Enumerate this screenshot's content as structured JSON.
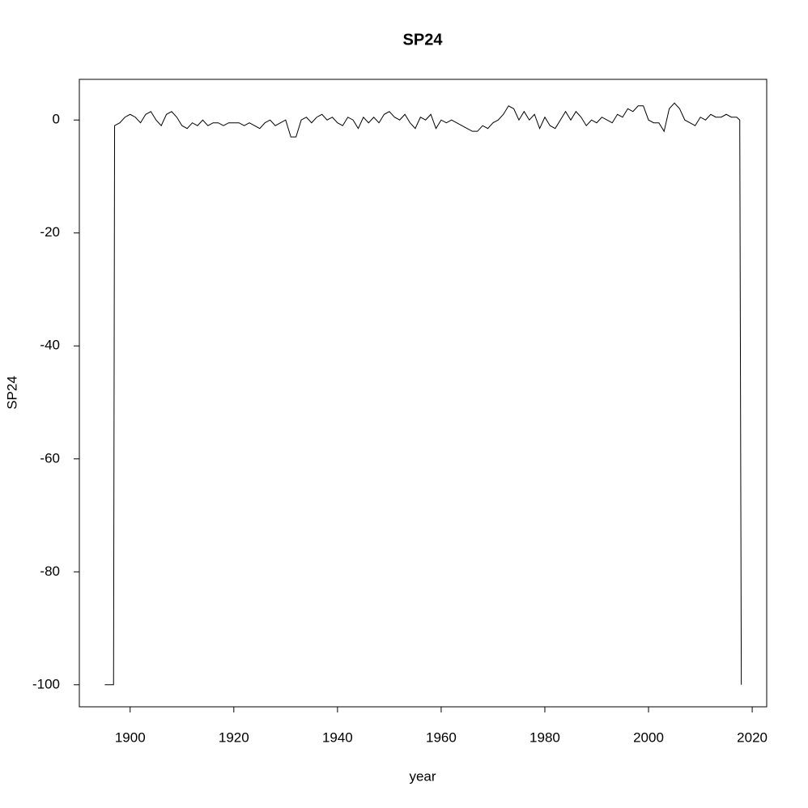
{
  "chart_data": {
    "type": "line",
    "title": "SP24",
    "x_label": "year",
    "y_label": "SP24",
    "color": "#000000",
    "x": [
      1895.1,
      1896.8,
      1896.9,
      1897,
      1898,
      1899,
      1900,
      1901,
      1902,
      1903,
      1904,
      1905,
      1906,
      1907,
      1908,
      1909,
      1910,
      1911,
      1912,
      1913,
      1914,
      1915,
      1916,
      1917,
      1918,
      1919,
      1920,
      1921,
      1922,
      1923,
      1924,
      1925,
      1926,
      1927,
      1928,
      1929,
      1930,
      1931,
      1932,
      1933,
      1934,
      1935,
      1936,
      1937,
      1938,
      1939,
      1940,
      1941,
      1942,
      1943,
      1944,
      1945,
      1946,
      1947,
      1948,
      1949,
      1950,
      1951,
      1952,
      1953,
      1954,
      1955,
      1956,
      1957,
      1958,
      1959,
      1960,
      1961,
      1962,
      1963,
      1964,
      1965,
      1966,
      1967,
      1968,
      1969,
      1970,
      1971,
      1972,
      1973,
      1974,
      1975,
      1976,
      1977,
      1978,
      1979,
      1980,
      1981,
      1982,
      1983,
      1984,
      1985,
      1986,
      1987,
      1988,
      1989,
      1990,
      1991,
      1992,
      1993,
      1994,
      1995,
      1996,
      1997,
      1998,
      1999,
      2000,
      2001,
      2002,
      2003,
      2004,
      2005,
      2006,
      2007,
      2008,
      2009,
      2010,
      2011,
      2012,
      2013,
      2014,
      2015,
      2016,
      2017,
      2017.6,
      2017.9
    ],
    "values": [
      -100,
      -100,
      -50,
      -1,
      -0.5,
      0.5,
      1,
      0.5,
      -0.5,
      1,
      1.5,
      0,
      -1,
      1,
      1.5,
      0.5,
      -1,
      -1.5,
      -0.5,
      -1,
      0,
      -1,
      -0.5,
      -0.5,
      -1,
      -0.5,
      -0.5,
      -0.5,
      -1,
      -0.5,
      -1,
      -1.5,
      -0.5,
      0,
      -1,
      -0.5,
      0,
      -3,
      -3,
      0,
      0.5,
      -0.5,
      0.5,
      1,
      0,
      0.5,
      -0.5,
      -1,
      0.5,
      0,
      -1.5,
      0.5,
      -0.5,
      0.5,
      -0.5,
      1,
      1.5,
      0.5,
      0,
      1,
      -0.5,
      -1.5,
      0.5,
      0,
      1,
      -1.5,
      0,
      -0.5,
      0,
      -0.5,
      -1,
      -1.5,
      -2,
      -2,
      -1,
      -1.5,
      -0.5,
      0,
      1,
      2.5,
      2,
      0,
      1.5,
      0,
      1,
      -1.5,
      0.5,
      -1,
      -1.5,
      0,
      1.5,
      0,
      1.5,
      0.5,
      -1,
      0,
      -0.5,
      0.5,
      0,
      -0.5,
      1,
      0.5,
      2,
      1.5,
      2.5,
      2.5,
      0,
      -0.5,
      -0.5,
      -2,
      2,
      3,
      2,
      0,
      -0.5,
      -1,
      0.5,
      0,
      1,
      0.5,
      0.5,
      1,
      0.5,
      0.5,
      0,
      -100
    ],
    "xlim": [
      1890.2,
      2022.8
    ],
    "ylim": [
      -103.9,
      7.2
    ],
    "xticks": [
      1900,
      1920,
      1940,
      1960,
      1980,
      2000,
      2020
    ],
    "yticks": [
      -100,
      -80,
      -60,
      -40,
      -20,
      0
    ]
  }
}
